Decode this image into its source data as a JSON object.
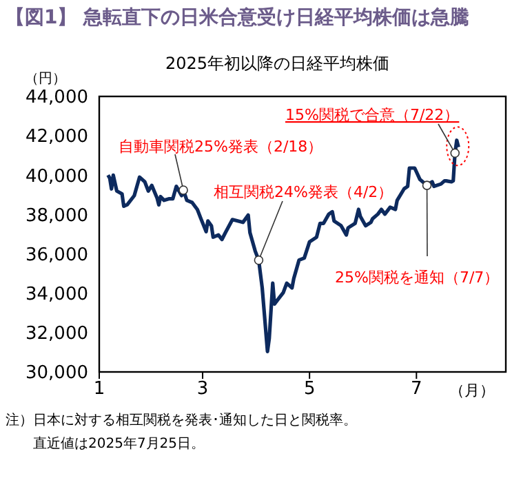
{
  "chart_data": {
    "type": "line",
    "title": "【図1】 急転直下の日米合意受け日経平均株価は急騰",
    "subtitle": "2025年初以降の日経平均株価",
    "ylabel": "（円）",
    "xlabel": "（月）",
    "x": [
      "2025-01-06",
      "2025-01-07",
      "2025-01-08",
      "2025-01-09",
      "2025-01-11",
      "2025-01-14",
      "2025-01-15",
      "2025-01-17",
      "2025-01-21",
      "2025-01-24",
      "2025-01-27",
      "2025-01-29",
      "2025-01-31",
      "2025-02-03",
      "2025-02-04",
      "2025-02-05",
      "2025-02-07",
      "2025-02-10",
      "2025-02-12",
      "2025-02-14",
      "2025-02-17",
      "2025-02-18",
      "2025-02-20",
      "2025-02-23",
      "2025-02-26",
      "2025-02-28",
      "2025-03-03",
      "2025-03-04",
      "2025-03-06",
      "2025-03-07",
      "2025-03-10",
      "2025-03-12",
      "2025-03-14",
      "2025-03-18",
      "2025-03-21",
      "2025-03-24",
      "2025-03-27",
      "2025-03-28",
      "2025-03-31",
      "2025-04-02",
      "2025-04-04",
      "2025-04-07",
      "2025-04-08",
      "2025-04-10",
      "2025-04-11",
      "2025-04-14",
      "2025-04-16",
      "2025-04-18",
      "2025-04-21",
      "2025-04-22",
      "2025-04-25",
      "2025-04-28",
      "2025-05-01",
      "2025-05-05",
      "2025-05-07",
      "2025-05-09",
      "2025-05-12",
      "2025-05-14",
      "2025-05-15",
      "2025-05-19",
      "2025-05-22",
      "2025-05-23",
      "2025-05-27",
      "2025-05-29",
      "2025-05-30",
      "2025-06-02",
      "2025-06-05",
      "2025-06-06",
      "2025-06-09",
      "2025-06-11",
      "2025-06-13",
      "2025-06-16",
      "2025-06-19",
      "2025-06-20",
      "2025-06-24",
      "2025-06-26",
      "2025-06-27",
      "2025-06-30",
      "2025-07-03",
      "2025-07-07",
      "2025-07-10",
      "2025-07-11",
      "2025-07-15",
      "2025-07-17",
      "2025-07-18",
      "2025-07-21",
      "2025-07-22",
      "2025-07-23",
      "2025-07-24",
      "2025-07-25"
    ],
    "series": [
      {
        "color": "#0d2a5e",
        "values": [
          40000,
          39850,
          39300,
          40000,
          39200,
          39050,
          38420,
          38500,
          38960,
          39900,
          39660,
          39190,
          39480,
          38840,
          38490,
          38910,
          38720,
          38800,
          38800,
          39430,
          38960,
          39240,
          38720,
          38610,
          38250,
          37790,
          37130,
          37670,
          37430,
          36850,
          36960,
          36730,
          37080,
          37740,
          37670,
          37600,
          37970,
          37080,
          36140,
          35680,
          34270,
          31040,
          31690,
          34510,
          33450,
          33800,
          34030,
          34510,
          34270,
          34740,
          35680,
          35790,
          36610,
          36850,
          37550,
          37550,
          38020,
          38140,
          37670,
          37430,
          36960,
          37320,
          37550,
          38260,
          37900,
          37430,
          37600,
          37790,
          38020,
          38260,
          38020,
          38370,
          38260,
          38720,
          39310,
          39430,
          40360,
          40360,
          39780,
          39480,
          39660,
          39430,
          39550,
          39710,
          39710,
          39660,
          39710,
          41120,
          41770,
          41420
        ]
      }
    ],
    "xlim": [
      "2025-01-01",
      "2025-08-21"
    ],
    "xticks": [
      {
        "value": "2025-01-01",
        "label": "1"
      },
      {
        "value": "2025-03-01",
        "label": "3"
      },
      {
        "value": "2025-05-01",
        "label": "5"
      },
      {
        "value": "2025-07-01",
        "label": "7"
      }
    ],
    "ylim": [
      30000,
      44000
    ],
    "yticks": [
      {
        "value": 30000,
        "label": "30,000"
      },
      {
        "value": 32000,
        "label": "32,000"
      },
      {
        "value": 34000,
        "label": "34,000"
      },
      {
        "value": 36000,
        "label": "36,000"
      },
      {
        "value": 38000,
        "label": "38,000"
      },
      {
        "value": 40000,
        "label": "40,000"
      },
      {
        "value": 42000,
        "label": "42,000"
      },
      {
        "value": 44000,
        "label": "44,000"
      }
    ],
    "grid": false,
    "legend": false,
    "annotations": [
      {
        "text": "自動車関税25%発表（2/18）",
        "x": "2025-02-18",
        "y": 39240
      },
      {
        "text": "相互関税24%発表（4/2）",
        "x": "2025-04-02",
        "y": 35680
      },
      {
        "text": "25%関税を通知（7/7）",
        "x": "2025-07-07",
        "y": 39480
      },
      {
        "text": "15%関税で合意（7/22）",
        "x": "2025-07-23",
        "y": 41120
      },
      "注）日本に対する相互関税を発表･通知した日と関税率。",
      "直近値は2025年7月25日。"
    ]
  }
}
